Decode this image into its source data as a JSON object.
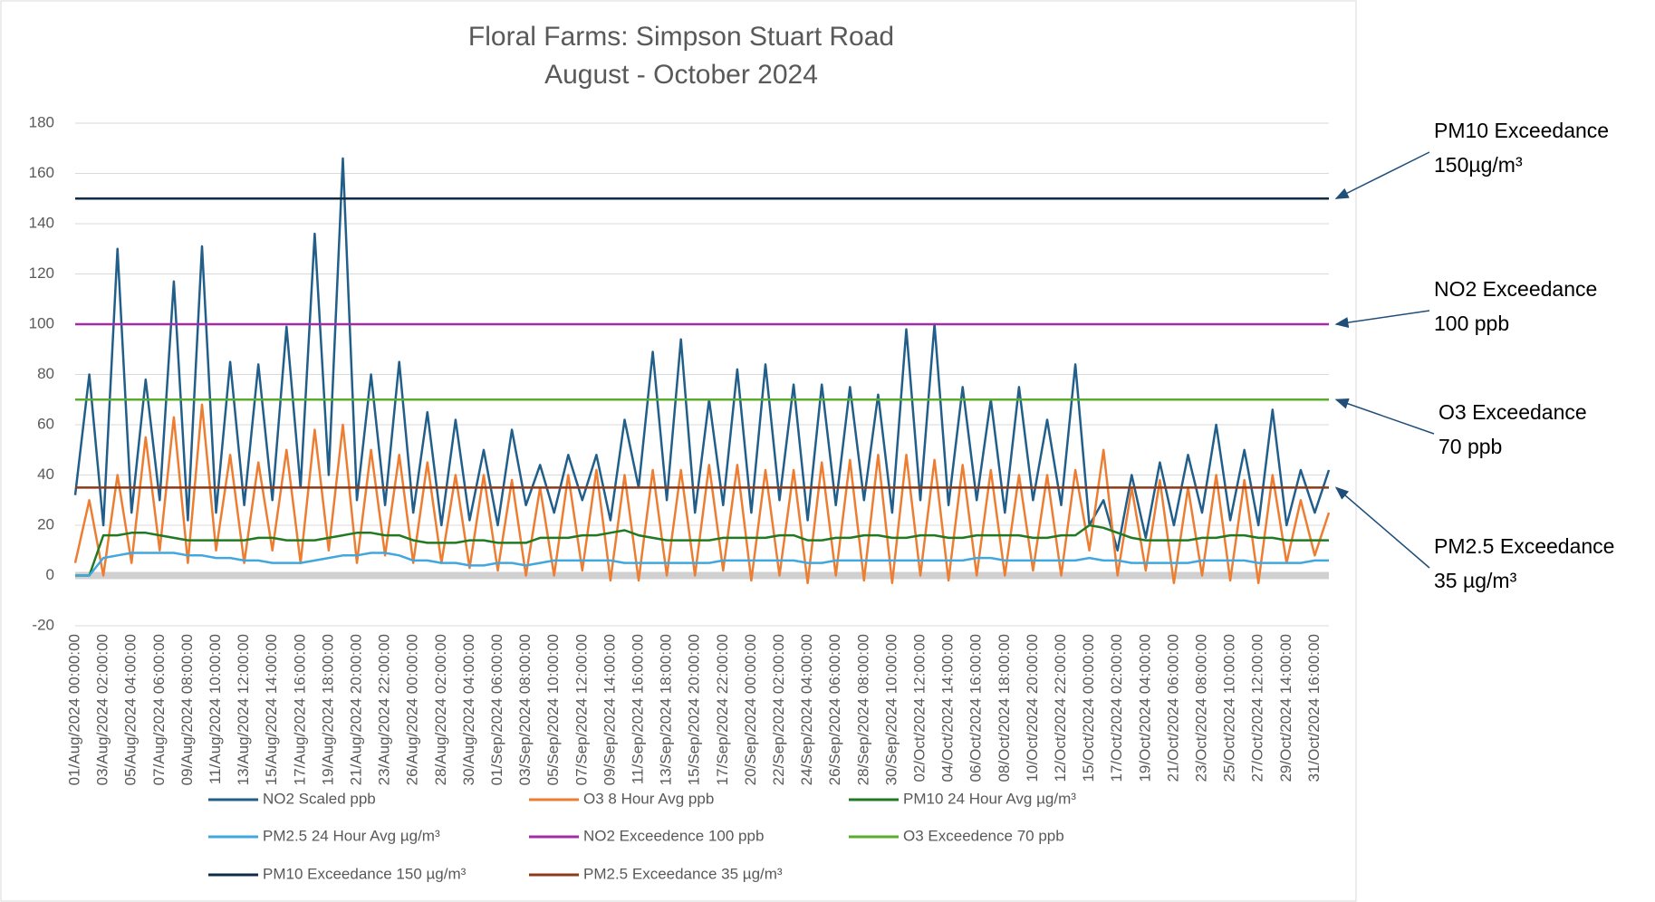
{
  "chart_data": {
    "type": "line",
    "title": "Floral Farms: Simpson Stuart Road",
    "subtitle": "August - October 2024",
    "categories": [
      "01/Aug/2024 00:00:00",
      null,
      "03/Aug/2024 02:00:00",
      null,
      "05/Aug/2024 04:00:00",
      null,
      "07/Aug/2024 06:00:00",
      null,
      "09/Aug/2024 08:00:00",
      null,
      "11/Aug/2024 10:00:00",
      null,
      "13/Aug/2024 12:00:00",
      null,
      "15/Aug/2024 14:00:00",
      null,
      "17/Aug/2024 16:00:00",
      null,
      "19/Aug/2024 18:00:00",
      null,
      "21/Aug/2024 20:00:00",
      null,
      "23/Aug/2024 22:00:00",
      null,
      "26/Aug/2024 00:00:00",
      null,
      "28/Aug/2024 02:00:00",
      null,
      "30/Aug/2024 04:00:00",
      null,
      "01/Sep/2024 06:00:00",
      null,
      "03/Sep/2024 08:00:00",
      null,
      "05/Sep/2024 10:00:00",
      null,
      "07/Sep/2024 12:00:00",
      null,
      "09/Sep/2024 14:00:00",
      null,
      "11/Sep/2024 16:00:00",
      null,
      "13/Sep/2024 18:00:00",
      null,
      "15/Sep/2024 20:00:00",
      null,
      "17/Sep/2024 22:00:00",
      null,
      "20/Sep/2024 00:00:00",
      null,
      "22/Sep/2024 02:00:00",
      null,
      "24/Sep/2024 04:00:00",
      null,
      "26/Sep/2024 06:00:00",
      null,
      "28/Sep/2024 08:00:00",
      null,
      "30/Sep/2024 10:00:00",
      null,
      "02/Oct/2024 12:00:00",
      null,
      "04/Oct/2024 14:00:00",
      null,
      "06/Oct/2024 16:00:00",
      null,
      "08/Oct/2024 18:00:00",
      null,
      "10/Oct/2024 20:00:00",
      null,
      "12/Oct/2024 22:00:00",
      null,
      "15/Oct/2024 00:00:00",
      null,
      "17/Oct/2024 02:00:00",
      null,
      "19/Oct/2024 04:00:00",
      null,
      "21/Oct/2024 06:00:00",
      null,
      "23/Oct/2024 08:00:00",
      null,
      "25/Oct/2024 10:00:00",
      null,
      "27/Oct/2024 12:00:00",
      null,
      "29/Oct/2024 14:00:00",
      null,
      "31/Oct/2024 16:00:00",
      null
    ],
    "series": [
      {
        "name": "NO2 Scaled ppb",
        "color": "#215f8a",
        "values": [
          32,
          80,
          20,
          130,
          25,
          78,
          30,
          117,
          22,
          131,
          25,
          85,
          28,
          84,
          30,
          99,
          35,
          136,
          40,
          166,
          30,
          80,
          28,
          85,
          25,
          65,
          20,
          62,
          22,
          50,
          20,
          58,
          28,
          44,
          25,
          48,
          30,
          48,
          22,
          62,
          35,
          89,
          30,
          94,
          25,
          70,
          28,
          82,
          25,
          84,
          30,
          76,
          22,
          76,
          28,
          75,
          30,
          72,
          25,
          98,
          30,
          100,
          28,
          75,
          30,
          70,
          25,
          75,
          30,
          62,
          28,
          84,
          20,
          30,
          10,
          40,
          15,
          45,
          20,
          48,
          25,
          60,
          22,
          50,
          20,
          66,
          20,
          42,
          25,
          42
        ]
      },
      {
        "name": "O3 8 Hour Avg ppb",
        "color": "#ed7d31",
        "values": [
          5,
          30,
          0,
          40,
          5,
          55,
          10,
          63,
          5,
          68,
          10,
          48,
          5,
          45,
          10,
          50,
          5,
          58,
          10,
          60,
          5,
          50,
          8,
          48,
          5,
          45,
          5,
          40,
          3,
          40,
          2,
          38,
          0,
          35,
          0,
          40,
          2,
          42,
          -2,
          40,
          -2,
          42,
          0,
          42,
          0,
          44,
          2,
          44,
          -2,
          42,
          0,
          42,
          -3,
          45,
          0,
          46,
          -2,
          48,
          -3,
          48,
          0,
          46,
          -2,
          44,
          0,
          42,
          0,
          40,
          2,
          40,
          0,
          42,
          10,
          50,
          0,
          35,
          2,
          38,
          -3,
          35,
          0,
          40,
          -2,
          38,
          -3,
          40,
          5,
          30,
          8,
          25
        ]
      },
      {
        "name": "PM10 24 Hour Avg µg/m³",
        "color": "#217a21",
        "values": [
          0,
          0,
          16,
          16,
          17,
          17,
          16,
          15,
          14,
          14,
          14,
          14,
          14,
          15,
          15,
          14,
          14,
          14,
          15,
          16,
          17,
          17,
          16,
          16,
          14,
          13,
          13,
          13,
          14,
          14,
          13,
          13,
          13,
          15,
          15,
          15,
          16,
          16,
          17,
          18,
          16,
          15,
          14,
          14,
          14,
          14,
          15,
          15,
          15,
          15,
          16,
          16,
          14,
          14,
          15,
          15,
          16,
          16,
          15,
          15,
          16,
          16,
          15,
          15,
          16,
          16,
          16,
          16,
          15,
          15,
          16,
          16,
          20,
          19,
          17,
          15,
          14,
          14,
          14,
          14,
          15,
          15,
          16,
          16,
          15,
          15,
          14,
          14,
          14,
          14
        ]
      },
      {
        "name": "PM2.5 24 Hour Avg µg/m³",
        "color": "#41a7de",
        "values": [
          0,
          0,
          7,
          8,
          9,
          9,
          9,
          9,
          8,
          8,
          7,
          7,
          6,
          6,
          5,
          5,
          5,
          6,
          7,
          8,
          8,
          9,
          9,
          8,
          6,
          6,
          5,
          5,
          4,
          4,
          5,
          5,
          4,
          5,
          6,
          6,
          6,
          6,
          6,
          5,
          5,
          5,
          5,
          5,
          5,
          5,
          6,
          6,
          6,
          6,
          6,
          6,
          5,
          5,
          6,
          6,
          6,
          6,
          6,
          6,
          6,
          6,
          6,
          6,
          7,
          7,
          6,
          6,
          6,
          6,
          6,
          6,
          7,
          6,
          6,
          5,
          5,
          5,
          5,
          5,
          6,
          6,
          6,
          6,
          5,
          5,
          5,
          5,
          6,
          6
        ]
      }
    ],
    "reference_lines": [
      {
        "name": "NO2 Exceedence 100 ppb",
        "color": "#a12ca5",
        "value": 100
      },
      {
        "name": "O3 Exceedence 70 ppb",
        "color": "#5aad2a",
        "value": 70
      },
      {
        "name": "PM10 Exceedance 150 µg/m³",
        "color": "#0f2b46",
        "value": 150
      },
      {
        "name": "PM2.5 Exceedance 35 µg/m³",
        "color": "#8b3a1a",
        "value": 35
      }
    ],
    "annotations": [
      {
        "lines": [
          "PM10 Exceedance",
          "150µg/m³"
        ]
      },
      {
        "lines": [
          "NO2 Exceedance",
          "100 ppb"
        ]
      },
      {
        "lines": [
          "O3 Exceedance",
          "70 ppb"
        ]
      },
      {
        "lines": [
          "PM2.5 Exceedance",
          "35 µg/m³"
        ]
      }
    ],
    "ylim": [
      -20,
      180
    ],
    "yticks": [
      -20,
      0,
      20,
      40,
      60,
      80,
      100,
      120,
      140,
      160,
      180
    ],
    "grid": true
  }
}
